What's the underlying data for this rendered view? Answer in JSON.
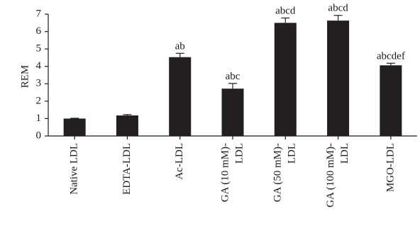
{
  "chart_data": {
    "type": "bar",
    "title": "",
    "xlabel": "",
    "ylabel": "REM",
    "ylim": [
      0,
      7
    ],
    "yticks": [
      "0",
      "1",
      "2",
      "3",
      "4",
      "5",
      "6",
      "7"
    ],
    "grid": false,
    "legend": "none",
    "bar_color": "#231f20",
    "categories": [
      [
        "Native LDL"
      ],
      [
        "EDTA-LDL"
      ],
      [
        "Ac-LDL"
      ],
      [
        "GA (10 mM)-",
        "LDL"
      ],
      [
        "GA (50 mM)-",
        "LDL"
      ],
      [
        "GA (100 mM)-",
        "LDL"
      ],
      [
        "MGO-LDL"
      ]
    ],
    "values": [
      1.0,
      1.18,
      4.53,
      2.72,
      6.5,
      6.63,
      4.06
    ],
    "errors": [
      0.02,
      0.05,
      0.22,
      0.3,
      0.28,
      0.3,
      0.12
    ],
    "annotations": [
      "",
      "",
      "ab",
      "abc",
      "abcd",
      "abcd",
      "abcdef"
    ]
  }
}
